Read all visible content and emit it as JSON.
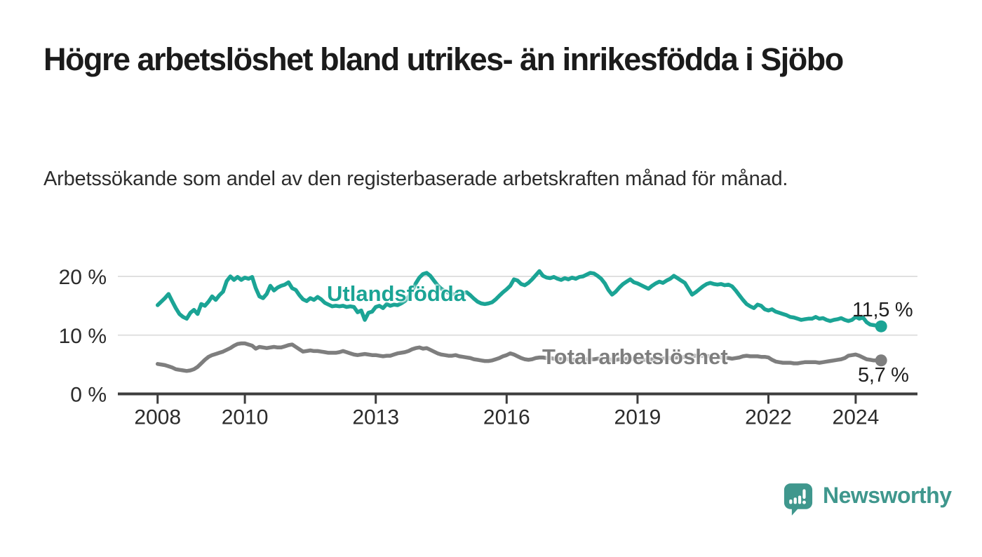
{
  "chart_data": {
    "type": "line",
    "title": "Högre arbetslöshet bland utrikes- än inrikesfödda i Sjöbo",
    "subtitle": "Arbetssökande som andel av den registerbaserade arbetskraften månad för månad.",
    "grid": "horizontal-only",
    "legend_position": "inline-labels-on-lines",
    "ylim": [
      0,
      22
    ],
    "y_ticks": [
      {
        "value": 0,
        "label": "0 %"
      },
      {
        "value": 10,
        "label": "10 %"
      },
      {
        "value": 20,
        "label": "20 %"
      }
    ],
    "x_ticks": [
      {
        "year": 2008,
        "label": "2008"
      },
      {
        "year": 2010,
        "label": "2010"
      },
      {
        "year": 2013,
        "label": "2013"
      },
      {
        "year": 2016,
        "label": "2016"
      },
      {
        "year": 2019,
        "label": "2019"
      },
      {
        "year": 2022,
        "label": "2022"
      },
      {
        "year": 2024,
        "label": "2024"
      }
    ],
    "x_range_years": [
      2008.0,
      2024.583
    ],
    "interval": "monthly",
    "first_month": "2008-01",
    "last_month": "2024-08",
    "series": [
      {
        "name": "Utlandsfödda",
        "color": "#1BA495",
        "end_label": "11,5 %",
        "last_value": 11.5,
        "values": [
          15.1,
          15.7,
          16.3,
          17.0,
          15.8,
          14.6,
          13.6,
          13.1,
          12.8,
          13.8,
          14.3,
          13.6,
          15.3,
          15.0,
          15.7,
          16.6,
          16.0,
          16.8,
          17.4,
          19.2,
          20.0,
          19.4,
          19.9,
          19.4,
          19.8,
          19.6,
          19.9,
          18.0,
          16.6,
          16.3,
          17.0,
          18.4,
          17.6,
          18.1,
          18.4,
          18.6,
          19.0,
          18.0,
          17.7,
          16.8,
          16.1,
          15.8,
          16.3,
          16.0,
          16.5,
          16.1,
          15.5,
          15.2,
          14.9,
          15.0,
          14.9,
          15.0,
          14.8,
          14.9,
          14.8,
          13.9,
          14.2,
          12.6,
          13.8,
          14.0,
          14.8,
          15.0,
          14.6,
          15.3,
          15.0,
          15.2,
          15.1,
          15.4,
          15.8,
          16.5,
          17.5,
          18.8,
          19.8,
          20.4,
          20.6,
          20.1,
          19.3,
          18.5,
          17.9,
          17.5,
          17.2,
          17.0,
          16.9,
          17.0,
          17.1,
          17.3,
          16.8,
          16.2,
          15.7,
          15.4,
          15.3,
          15.4,
          15.6,
          16.1,
          16.7,
          17.3,
          17.8,
          18.4,
          19.5,
          19.3,
          18.7,
          18.5,
          18.9,
          19.5,
          20.2,
          20.9,
          20.1,
          19.8,
          19.7,
          19.9,
          19.6,
          19.4,
          19.7,
          19.5,
          19.8,
          19.6,
          19.9,
          20.0,
          20.3,
          20.6,
          20.5,
          20.1,
          19.6,
          18.8,
          17.7,
          16.9,
          17.4,
          18.1,
          18.7,
          19.1,
          19.5,
          19.0,
          18.8,
          18.5,
          18.2,
          17.9,
          18.4,
          18.8,
          19.1,
          18.9,
          19.3,
          19.6,
          20.1,
          19.7,
          19.3,
          18.9,
          17.9,
          16.9,
          17.3,
          17.8,
          18.3,
          18.7,
          18.9,
          18.7,
          18.6,
          18.7,
          18.5,
          18.6,
          18.3,
          17.6,
          16.8,
          16.0,
          15.3,
          14.9,
          14.6,
          15.2,
          15.0,
          14.4,
          14.2,
          14.4,
          14.0,
          13.8,
          13.6,
          13.4,
          13.1,
          13.0,
          12.8,
          12.6,
          12.7,
          12.8,
          12.8,
          13.1,
          12.8,
          12.9,
          12.6,
          12.4,
          12.6,
          12.7,
          12.9,
          12.6,
          12.4,
          12.6,
          13.1,
          12.8,
          13.0,
          12.2,
          11.8,
          11.7,
          11.6,
          11.5
        ]
      },
      {
        "name": "Total arbetslöshet",
        "color": "#7E7E7E",
        "end_label": "5,7 %",
        "last_value": 5.7,
        "values": [
          5.1,
          5.0,
          4.9,
          4.7,
          4.5,
          4.2,
          4.1,
          4.0,
          3.9,
          4.0,
          4.2,
          4.6,
          5.2,
          5.8,
          6.3,
          6.6,
          6.8,
          7.0,
          7.2,
          7.5,
          7.8,
          8.2,
          8.5,
          8.6,
          8.6,
          8.4,
          8.2,
          7.7,
          8.0,
          7.9,
          7.8,
          7.9,
          8.0,
          7.9,
          7.9,
          8.1,
          8.3,
          8.4,
          8.0,
          7.6,
          7.2,
          7.3,
          7.4,
          7.3,
          7.3,
          7.2,
          7.1,
          7.0,
          7.0,
          7.0,
          7.1,
          7.3,
          7.1,
          6.9,
          6.7,
          6.6,
          6.7,
          6.8,
          6.7,
          6.6,
          6.6,
          6.5,
          6.4,
          6.5,
          6.5,
          6.7,
          6.9,
          7.0,
          7.1,
          7.3,
          7.6,
          7.8,
          7.9,
          7.7,
          7.8,
          7.5,
          7.2,
          6.9,
          6.7,
          6.6,
          6.5,
          6.5,
          6.6,
          6.4,
          6.3,
          6.2,
          6.1,
          5.9,
          5.8,
          5.7,
          5.6,
          5.6,
          5.7,
          5.9,
          6.1,
          6.4,
          6.6,
          6.9,
          6.7,
          6.4,
          6.1,
          5.9,
          5.8,
          5.9,
          6.1,
          6.2,
          6.2,
          6.1,
          6.1,
          6.0,
          6.0,
          5.9,
          5.9,
          5.9,
          5.8,
          5.8,
          5.8,
          5.8,
          5.9,
          5.9,
          5.9,
          6.0,
          6.0,
          5.9,
          5.9,
          5.8,
          5.8,
          5.9,
          5.9,
          6.0,
          6.0,
          5.9,
          5.9,
          5.8,
          5.8,
          5.8,
          5.9,
          5.9,
          6.0,
          6.0,
          6.1,
          6.1,
          6.2,
          6.2,
          6.2,
          6.3,
          6.4,
          6.5,
          6.5,
          6.5,
          6.5,
          6.4,
          6.4,
          6.3,
          6.3,
          6.2,
          6.2,
          6.1,
          6.0,
          6.1,
          6.2,
          6.4,
          6.5,
          6.4,
          6.4,
          6.4,
          6.3,
          6.3,
          6.2,
          5.8,
          5.5,
          5.4,
          5.3,
          5.3,
          5.3,
          5.2,
          5.2,
          5.3,
          5.4,
          5.4,
          5.4,
          5.4,
          5.3,
          5.4,
          5.5,
          5.6,
          5.7,
          5.8,
          5.9,
          6.1,
          6.5,
          6.6,
          6.7,
          6.5,
          6.2,
          5.9,
          5.8,
          5.7,
          5.7,
          5.7
        ]
      }
    ]
  },
  "logo": {
    "text": "Newsworthy",
    "color": "#3F978D",
    "icon": "newsworthy-speech-bubble-bar-chart-icon"
  }
}
